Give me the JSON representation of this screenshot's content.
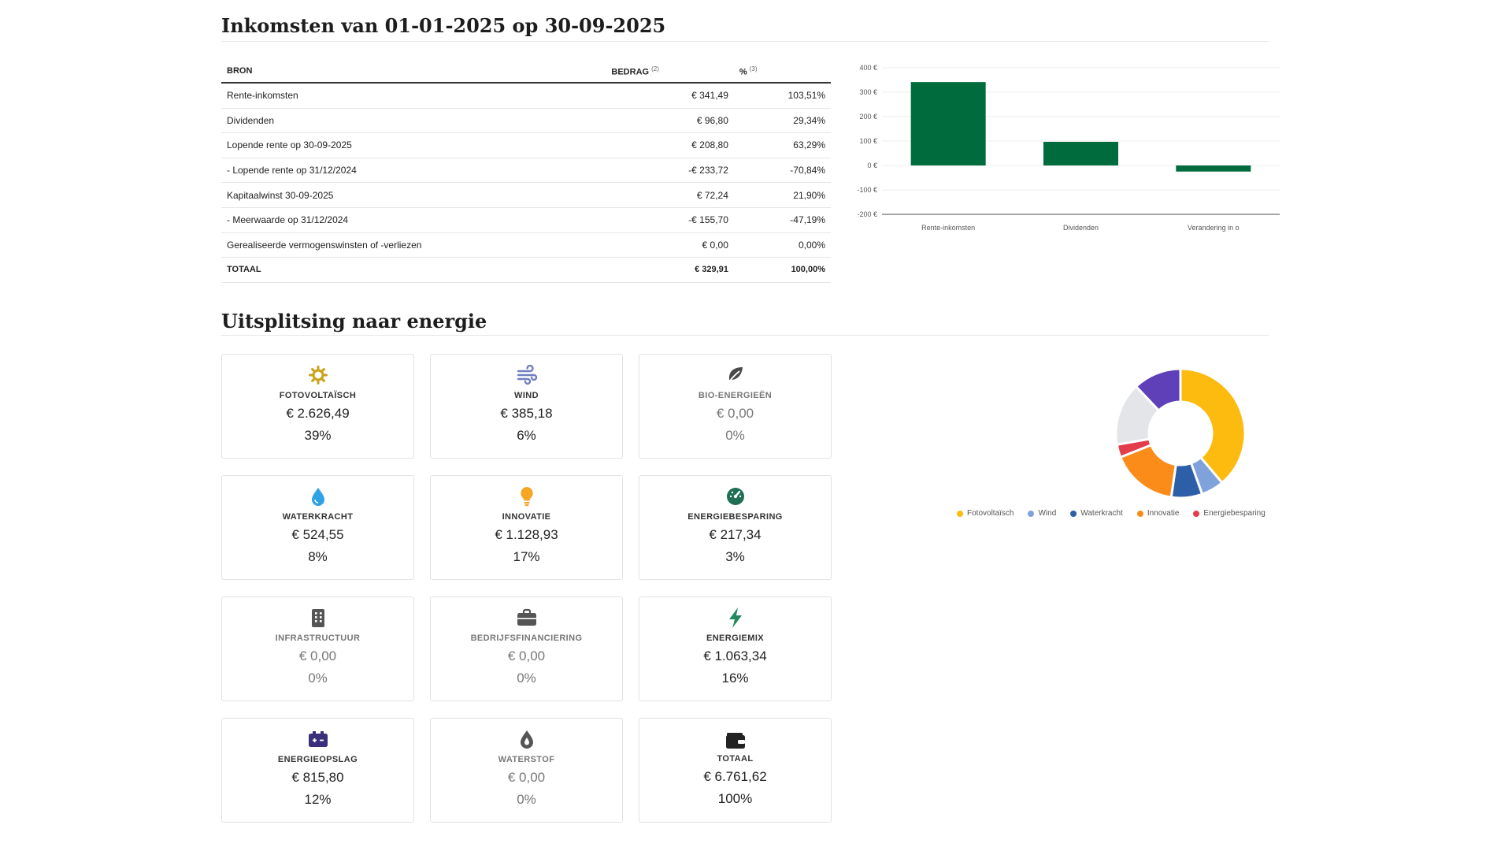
{
  "income": {
    "title": "Inkomsten van 01-01-2025 op 30-09-2025",
    "columns": {
      "source": "BRON",
      "amount": "BEDRAG",
      "amount_note": "(2)",
      "percent": "%",
      "percent_note": "(3)"
    },
    "rows": [
      {
        "label": "Rente-inkomsten",
        "amount": "€ 341,49",
        "percent": "103,51%"
      },
      {
        "label": "Dividenden",
        "amount": "€ 96,80",
        "percent": "29,34%"
      },
      {
        "label": "Lopende rente op 30-09-2025",
        "amount": "€ 208,80",
        "percent": "63,29%"
      },
      {
        "label": "- Lopende rente op 31/12/2024",
        "amount": "-€ 233,72",
        "percent": "-70,84%"
      },
      {
        "label": "Kapitaalwinst 30-09-2025",
        "amount": "€ 72,24",
        "percent": "21,90%"
      },
      {
        "label": "- Meerwaarde op 31/12/2024",
        "amount": "-€ 155,70",
        "percent": "-47,19%"
      },
      {
        "label": "Gerealiseerde vermogenswinsten of -verliezen",
        "amount": "€ 0,00",
        "percent": "0,00%"
      }
    ],
    "total": {
      "label": "TOTAAL",
      "amount": "€ 329,91",
      "percent": "100,00%"
    }
  },
  "energy": {
    "title": "Uitsplitsing naar energie",
    "tiles": [
      {
        "label": "FOTOVOLTAÏSCH",
        "amount": "€ 2.626,49",
        "percent": "39%",
        "icon": "sun-icon",
        "color": "#c8a217"
      },
      {
        "label": "WIND",
        "amount": "€ 385,18",
        "percent": "6%",
        "icon": "wind-icon",
        "color": "#6f7fc0"
      },
      {
        "label": "BIO-ENERGIEËN",
        "amount": "€ 0,00",
        "percent": "0%",
        "icon": "leaf-icon",
        "color": "#4a4a4a"
      },
      {
        "label": "WATERKRACHT",
        "amount": "€ 524,55",
        "percent": "8%",
        "icon": "water-drop-icon",
        "color": "#2fa3e6"
      },
      {
        "label": "INNOVATIE",
        "amount": "€ 1.128,93",
        "percent": "17%",
        "icon": "lightbulb-icon",
        "color": "#f5a623"
      },
      {
        "label": "ENERGIEBESPARING",
        "amount": "€ 217,34",
        "percent": "3%",
        "icon": "gauge-icon",
        "color": "#1f6f55"
      },
      {
        "label": "INFRASTRUCTUUR",
        "amount": "€ 0,00",
        "percent": "0%",
        "icon": "building-icon",
        "color": "#555555"
      },
      {
        "label": "BEDRIJFSFINANCIERING",
        "amount": "€ 0,00",
        "percent": "0%",
        "icon": "briefcase-icon",
        "color": "#555555"
      },
      {
        "label": "ENERGIEMIX",
        "amount": "€ 1.063,34",
        "percent": "16%",
        "icon": "lightning-icon",
        "color": "#1e8a5e"
      },
      {
        "label": "ENERGIEOPSLAG",
        "amount": "€ 815,80",
        "percent": "12%",
        "icon": "battery-icon",
        "color": "#3a2f7a"
      },
      {
        "label": "WATERSTOF",
        "amount": "€ 0,00",
        "percent": "0%",
        "icon": "hydrogen-drop-icon",
        "color": "#555555"
      },
      {
        "label": "TOTAAL",
        "amount": "€ 6.761,62",
        "percent": "100%",
        "icon": "wallet-icon",
        "color": "#222222"
      }
    ]
  },
  "chart_data": [
    {
      "type": "bar",
      "categories": [
        "Rente-inkomsten",
        "Dividenden",
        "Verandering in o"
      ],
      "values": [
        341.49,
        96.8,
        -24.92
      ],
      "ylim": [
        -200,
        400
      ],
      "yticks": [
        "400 €",
        "300 €",
        "200 €",
        "100 €",
        "0 €",
        "-100 €",
        "-200 €"
      ],
      "color": "#006b3c"
    },
    {
      "type": "pie",
      "donut": true,
      "labels": [
        "Fotovoltaïsch",
        "Wind",
        "Waterkracht",
        "Innovatie",
        "Energiebesparing",
        "",
        ""
      ],
      "values": [
        2626.49,
        385.18,
        524.55,
        1128.93,
        217.34,
        1063.34,
        815.8
      ],
      "colors": [
        "#fdbb10",
        "#7fa1dc",
        "#2d5ea8",
        "#fb8c1a",
        "#e23d4b",
        "#e3e5e8",
        "#6040b8"
      ],
      "legend": [
        "Fotovoltaïsch",
        "Wind",
        "Waterkracht",
        "Innovatie",
        "Energiebesparing"
      ],
      "legend_position": "bottom"
    }
  ]
}
